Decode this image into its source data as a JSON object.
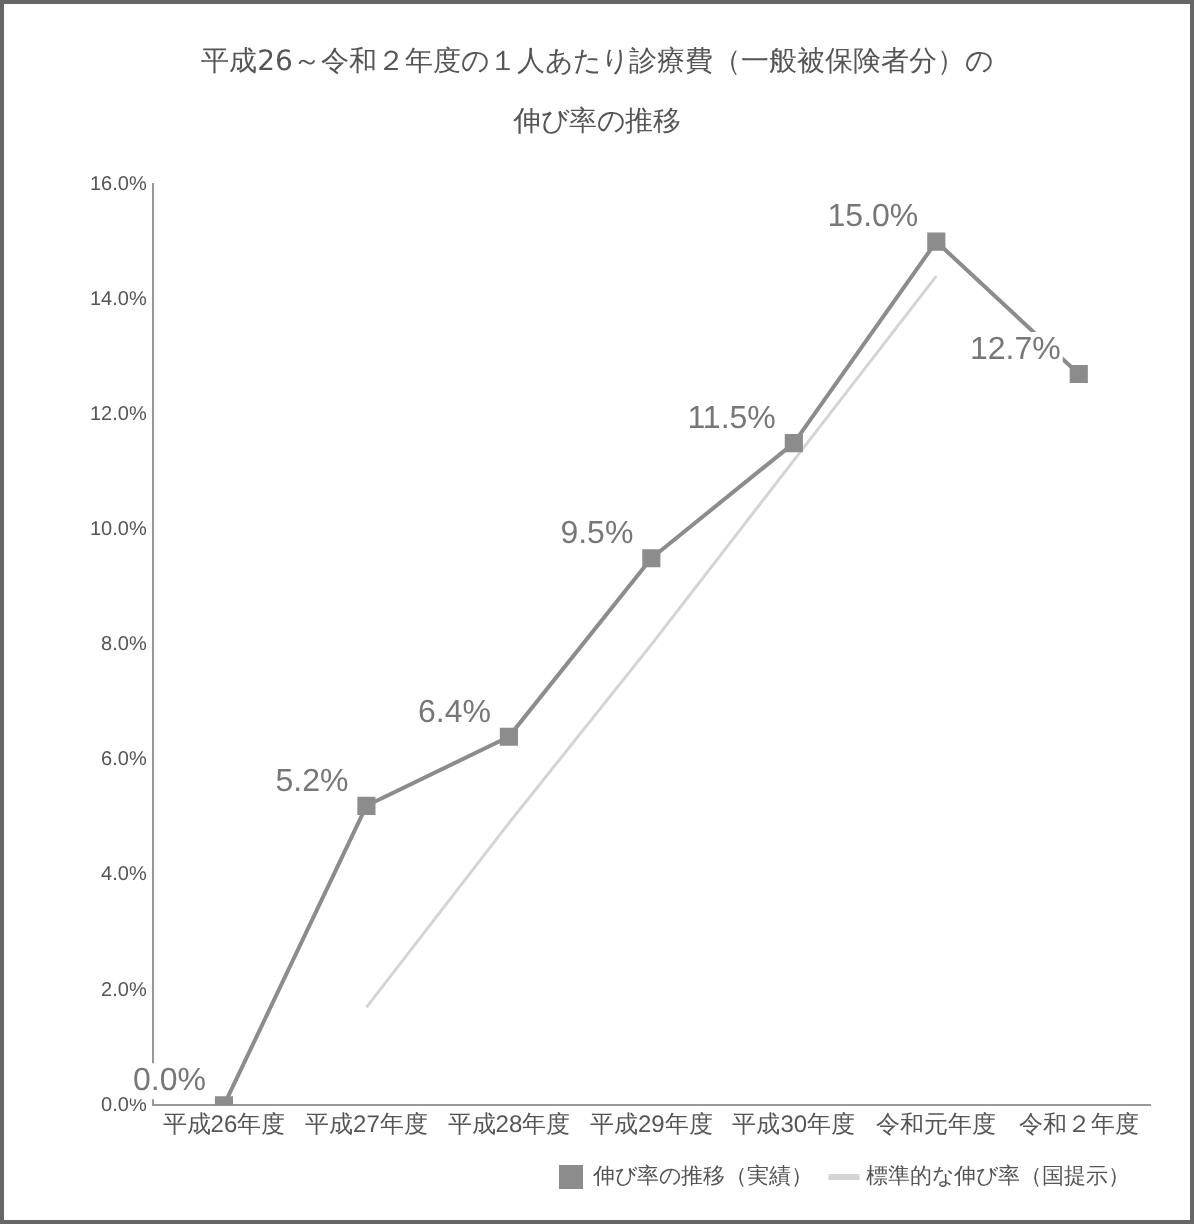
{
  "chart_data": {
    "type": "line",
    "title": "平成26～令和２年度の１人あたり診療費（一般被保険者分）の",
    "subtitle": "伸び率の推移",
    "categories": [
      "平成26年度",
      "平成27年度",
      "平成28年度",
      "平成29年度",
      "平成30年度",
      "令和元年度",
      "令和２年度"
    ],
    "series": [
      {
        "name": "伸び率の推移（実績）",
        "color": "#8c8c8c",
        "values": [
          0.0,
          5.2,
          6.4,
          9.5,
          11.5,
          15.0,
          12.7
        ],
        "value_labels": [
          "0.0%",
          "5.2%",
          "6.4%",
          "9.5%",
          "11.5%",
          "15.0%",
          "12.7%"
        ],
        "marker": "square"
      },
      {
        "name": "標準的な伸び率（国提示）",
        "color": "#d4d4d4",
        "values": [
          null,
          1.7,
          4.9,
          8.0,
          11.2,
          14.4,
          null
        ],
        "marker": "none"
      }
    ],
    "ylim": [
      0,
      16
    ],
    "yticks": [
      {
        "value": 0,
        "label": "0.0%"
      },
      {
        "value": 2,
        "label": "2.0%"
      },
      {
        "value": 4,
        "label": "4.0%"
      },
      {
        "value": 6,
        "label": "6.0%"
      },
      {
        "value": 8,
        "label": "8.0%"
      },
      {
        "value": 10,
        "label": "10.0%"
      },
      {
        "value": 12,
        "label": "12.0%"
      },
      {
        "value": 14,
        "label": "14.0%"
      },
      {
        "value": 16,
        "label": "16.0%"
      }
    ],
    "grid": false,
    "legend": "bottom right"
  }
}
